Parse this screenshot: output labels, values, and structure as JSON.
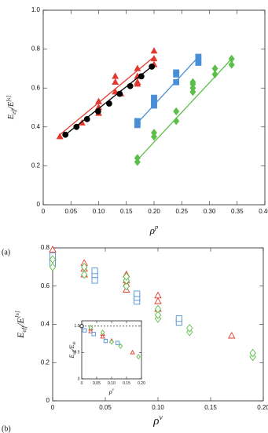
{
  "chart_data": [
    {
      "type": "scatter",
      "panel_label": "(a)",
      "xlabel": [
        {
          "t": "ρ"
        },
        {
          "t": "p",
          "pos": "super"
        }
      ],
      "ylabel": [
        {
          "t": "E"
        },
        {
          "t": "eff",
          "pos": "sub"
        },
        {
          "t": "/E"
        },
        {
          "t": "[s]",
          "pos": "super"
        }
      ],
      "xlim": [
        0,
        0.4
      ],
      "ylim": [
        0,
        1
      ],
      "xticks": [
        0,
        0.05,
        {
          "value": 0.1,
          "label": "0.10"
        },
        0.15,
        {
          "value": 0.2,
          "label": "0.20"
        },
        0.25,
        {
          "value": 0.3,
          "label": "0.30"
        },
        0.35,
        {
          "value": 0.4,
          "label": "0.40"
        }
      ],
      "yticks": [
        0,
        0.2,
        0.4,
        0.6,
        0.8,
        {
          "value": 1,
          "label": "1.0"
        }
      ],
      "series": [
        {
          "color": "#e03a2f",
          "marker": "triangle",
          "filled": true,
          "x": [
            0.03,
            0.07,
            0.1,
            0.1,
            0.1,
            0.13,
            0.13,
            0.13,
            0.14,
            0.17,
            0.17,
            0.17,
            0.17,
            0.2,
            0.2,
            0.2
          ],
          "values": [
            0.35,
            0.42,
            0.47,
            0.5,
            0.53,
            0.58,
            0.63,
            0.66,
            0.57,
            0.62,
            0.63,
            0.66,
            0.7,
            0.72,
            0.75,
            0.79
          ]
        },
        {
          "color": "#e03a2f",
          "style": "line",
          "x": [
            0.03,
            0.2
          ],
          "values": [
            0.36,
            0.76
          ]
        },
        {
          "color": "#000000",
          "marker": "circle",
          "filled": true,
          "x": [
            0.04,
            0.06,
            0.079,
            0.099,
            0.119,
            0.138,
            0.157,
            0.177,
            0.196
          ],
          "values": [
            0.36,
            0.4,
            0.44,
            0.48,
            0.52,
            0.57,
            0.61,
            0.66,
            0.71
          ]
        },
        {
          "color": "#000000",
          "style": "line",
          "x": [
            0.04,
            0.196
          ],
          "values": [
            0.36,
            0.71
          ]
        },
        {
          "color": "#4a8fd6",
          "marker": "square",
          "filled": true,
          "x": [
            0.17,
            0.17,
            0.2,
            0.2,
            0.2,
            0.24,
            0.24,
            0.24,
            0.28,
            0.28
          ],
          "values": [
            0.41,
            0.43,
            0.51,
            0.53,
            0.55,
            0.63,
            0.67,
            0.68,
            0.73,
            0.76
          ]
        },
        {
          "color": "#4a8fd6",
          "style": "line",
          "x": [
            0.17,
            0.28
          ],
          "values": [
            0.42,
            0.76
          ]
        },
        {
          "color": "#5cbf4a",
          "marker": "diamond",
          "filled": true,
          "x": [
            0.17,
            0.17,
            0.2,
            0.2,
            0.24,
            0.24,
            0.27,
            0.27,
            0.27,
            0.27,
            0.31,
            0.31,
            0.34,
            0.34
          ],
          "values": [
            0.22,
            0.24,
            0.35,
            0.37,
            0.43,
            0.48,
            0.58,
            0.6,
            0.62,
            0.63,
            0.67,
            0.7,
            0.72,
            0.75
          ]
        },
        {
          "color": "#5cbf4a",
          "style": "line",
          "x": [
            0.17,
            0.34
          ],
          "values": [
            0.23,
            0.75
          ]
        }
      ]
    },
    {
      "type": "scatter",
      "panel_label": "(b)",
      "xlabel": [
        {
          "t": "ρ"
        },
        {
          "t": "v",
          "pos": "super"
        }
      ],
      "ylabel": [
        {
          "t": "E"
        },
        {
          "t": "eff",
          "pos": "sub"
        },
        {
          "t": "/E"
        },
        {
          "t": "[s]",
          "pos": "super"
        }
      ],
      "xlim": [
        0,
        0.2
      ],
      "ylim": [
        0,
        0.8
      ],
      "xticks": [
        0,
        0.05,
        {
          "value": 0.1,
          "label": "0.10"
        },
        0.15,
        {
          "value": 0.2,
          "label": "0.20"
        }
      ],
      "yticks": [
        0,
        0.2,
        0.4,
        0.6,
        0.8
      ],
      "series": [
        {
          "color": "#000000",
          "marker": "circle",
          "filled": false,
          "x": [
            0
          ],
          "values": [
            0.73
          ]
        },
        {
          "color": "#e03a2f",
          "marker": "triangle",
          "filled": false,
          "x": [
            0,
            0,
            0.03,
            0.03,
            0.03,
            0.07,
            0.07,
            0.07,
            0.07,
            0.1,
            0.1,
            0.1,
            0.17
          ],
          "values": [
            0.75,
            0.79,
            0.66,
            0.69,
            0.72,
            0.58,
            0.61,
            0.63,
            0.66,
            0.48,
            0.52,
            0.55,
            0.34
          ]
        },
        {
          "color": "#4a8fd6",
          "marker": "square",
          "filled": false,
          "x": [
            0,
            0,
            0.04,
            0.04,
            0.04,
            0.08,
            0.08,
            0.08,
            0.12,
            0.12
          ],
          "values": [
            0.72,
            0.76,
            0.63,
            0.66,
            0.68,
            0.52,
            0.54,
            0.56,
            0.41,
            0.43
          ]
        },
        {
          "color": "#5cbf4a",
          "marker": "diamond",
          "filled": false,
          "x": [
            0,
            0,
            0.03,
            0.03,
            0.07,
            0.07,
            0.07,
            0.1,
            0.1,
            0.1,
            0.13,
            0.13,
            0.19,
            0.19
          ],
          "values": [
            0.7,
            0.74,
            0.66,
            0.7,
            0.6,
            0.63,
            0.65,
            0.43,
            0.45,
            0.48,
            0.36,
            0.38,
            0.23,
            0.25
          ]
        }
      ]
    },
    {
      "type": "scatter",
      "inset": true,
      "xlabel": [
        {
          "t": "ρ"
        },
        {
          "t": "v",
          "pos": "super"
        }
      ],
      "ylabel": [
        {
          "t": "E"
        },
        {
          "t": "eff",
          "pos": "sub"
        },
        {
          "t": "/E"
        },
        {
          "t": "th",
          "pos": "sub"
        }
      ],
      "xlim": [
        0,
        0.2
      ],
      "ylim": [
        0,
        1.1
      ],
      "xticks": [
        0,
        0.05,
        {
          "value": 0.1,
          "label": "0.10"
        },
        0.15,
        {
          "value": 0.2,
          "label": "0.20"
        }
      ],
      "yticks": [
        0,
        0.5,
        {
          "value": 1,
          "label": "1.0"
        }
      ],
      "hline": 1,
      "series": [
        {
          "color": "#000000",
          "marker": "circle",
          "filled": false,
          "x": [
            0
          ],
          "values": [
            1
          ]
        },
        {
          "color": "#e03a2f",
          "marker": "triangle",
          "filled": false,
          "x": [
            0.03,
            0.03,
            0.07,
            0.07,
            0.1,
            0.17
          ],
          "values": [
            0.95,
            0.9,
            0.85,
            0.8,
            0.72,
            0.5
          ]
        },
        {
          "color": "#4a8fd6",
          "marker": "square",
          "filled": false,
          "x": [
            0.01,
            0.04,
            0.08,
            0.12
          ],
          "values": [
            0.92,
            0.85,
            0.72,
            0.68
          ]
        },
        {
          "color": "#5cbf4a",
          "marker": "diamond",
          "filled": false,
          "x": [
            0.03,
            0.07,
            0.1,
            0.13,
            0.19
          ],
          "values": [
            0.97,
            0.88,
            0.7,
            0.62,
            0.42
          ]
        }
      ]
    }
  ]
}
